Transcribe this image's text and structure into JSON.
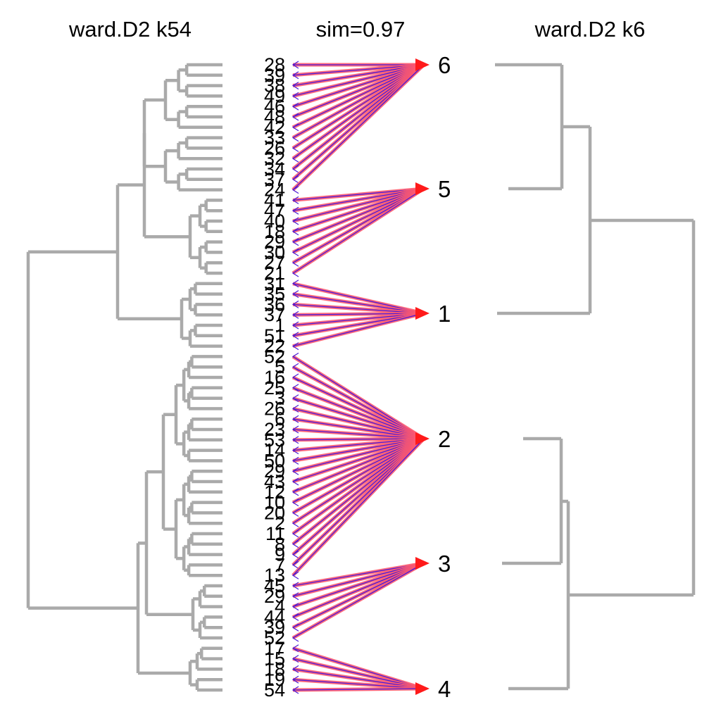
{
  "left_title": "ward.D2 k54",
  "center_title": "sim=0.97",
  "right_title": "ward.D2 k6",
  "colors": {
    "dendrogram": "#aaaaaa",
    "edge_outer": "#ff5a6e",
    "edge_inner": "#4a1ad6",
    "arrow": "#ff1a1a",
    "text": "#000000"
  },
  "left_leaves": [
    "28",
    "39",
    "38",
    "49",
    "46",
    "48",
    "42",
    "33",
    "26",
    "32",
    "34",
    "37",
    "24",
    "41",
    "47",
    "40",
    "18",
    "29",
    "30",
    "27",
    "21",
    "31",
    "35",
    "36",
    "37",
    "1",
    "51",
    "22",
    "52",
    "5",
    "16",
    "25",
    "3",
    "26",
    "6",
    "23",
    "53",
    "14",
    "50",
    "29",
    "43",
    "12",
    "10",
    "20",
    "2",
    "11",
    "8",
    "9",
    "7",
    "13",
    "45",
    "29",
    "4",
    "44",
    "39",
    "52",
    "17",
    "15",
    "18",
    "19",
    "54"
  ],
  "right_clusters": [
    "6",
    "5",
    "1",
    "2",
    "3",
    "4"
  ],
  "chart_data": {
    "type": "tanglegram",
    "left_dendrogram": "ward.D2 k54",
    "right_dendrogram": "ward.D2 k6",
    "similarity": 0.97,
    "mapping": [
      {
        "cluster": "6",
        "leaves": [
          "28",
          "39",
          "38",
          "49",
          "46",
          "48",
          "42",
          "33",
          "26",
          "32",
          "34",
          "37",
          "24"
        ]
      },
      {
        "cluster": "5",
        "leaves": [
          "41",
          "47",
          "40",
          "18",
          "29",
          "30",
          "27",
          "21"
        ]
      },
      {
        "cluster": "1",
        "leaves": [
          "31",
          "35",
          "36",
          "37",
          "1",
          "51",
          "22"
        ]
      },
      {
        "cluster": "2",
        "leaves": [
          "52",
          "5",
          "16",
          "25",
          "3",
          "26",
          "6",
          "23",
          "53",
          "14",
          "50",
          "29",
          "43",
          "12",
          "10",
          "20",
          "2",
          "11",
          "8",
          "9",
          "7",
          "13"
        ]
      },
      {
        "cluster": "3",
        "leaves": [
          "45",
          "29",
          "4",
          "44",
          "39",
          "52"
        ]
      },
      {
        "cluster": "4",
        "leaves": [
          "17",
          "15",
          "18",
          "19",
          "54"
        ]
      }
    ]
  }
}
